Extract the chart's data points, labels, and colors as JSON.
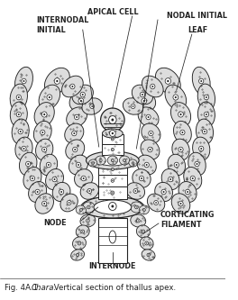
{
  "title": "Fig. 4A.1.",
  "italic_title": "Chara.",
  "subtitle": " Vertical section of thallus apex.",
  "bg_color": "#ffffff",
  "fig_width": 2.64,
  "fig_height": 3.33,
  "dpi": 100,
  "labels": {
    "apical_cell": "APICAL CELL",
    "internodal_initial": "INTERNODAL\nINITIAL",
    "nodal_initial": "NODAL INITIAL",
    "leaf": "LEAF",
    "node": "NODE",
    "corticating_filament": "CORTICATING\nFILAMENT",
    "internode": "INTERNODE"
  },
  "stipple_color": "#cccccc",
  "line_color": "#222222",
  "cell_fill": "#dddddd",
  "white_fill": "#ffffff"
}
